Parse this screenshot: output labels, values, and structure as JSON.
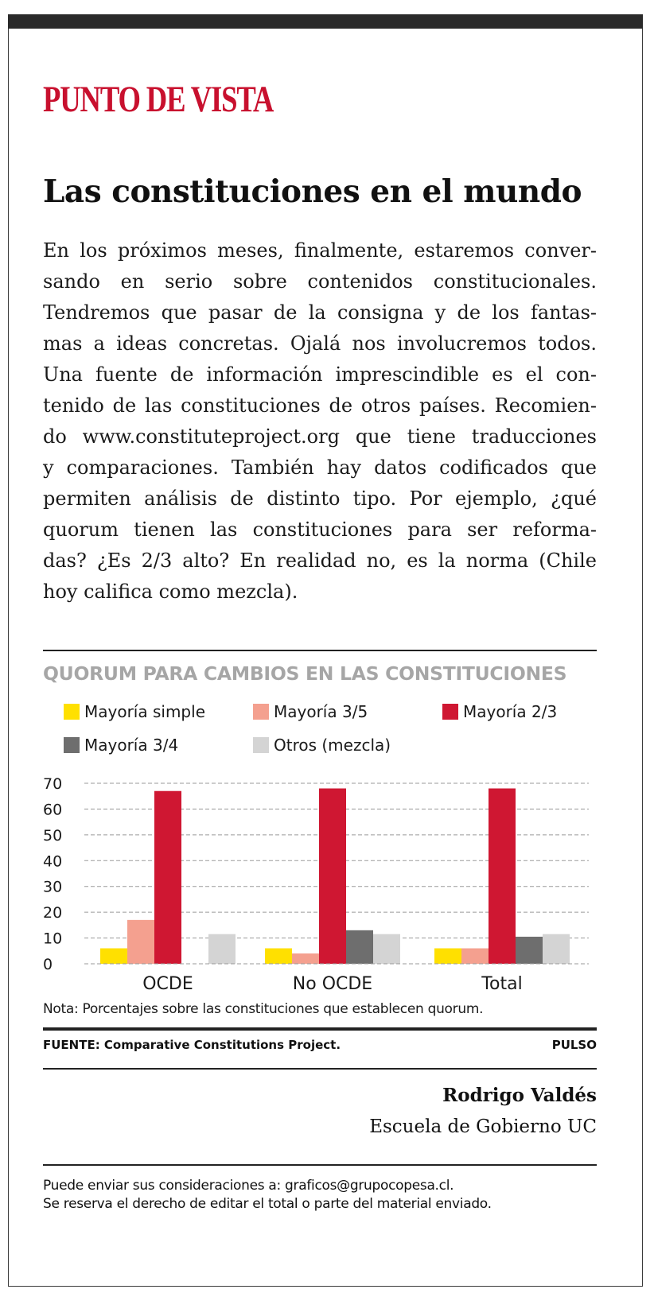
{
  "section": {
    "kicker": "PUNTO DE VISTA"
  },
  "article": {
    "headline": "Las constituciones en el mundo",
    "body_lines": [
      "En los próximos meses, finalmente, estaremos conver-",
      "sando en serio sobre contenidos constitucionales.",
      "Tendremos que pasar de la consigna y de los fantas-",
      "mas a ideas concretas. Ojalá nos involucremos todos.",
      "Una fuente de información imprescindible es el con-",
      "tenido de las constituciones de otros países. Recomien-",
      "do www.constituteproject.org que tiene traducciones",
      "y comparaciones. También hay datos codificados que",
      "permiten análisis de distinto tipo. Por ejemplo, ¿qué",
      "quorum tienen las constituciones para ser reforma-",
      "das? ¿Es 2/3 alto? En realidad no, es la norma (Chile",
      "hoy califica como mezcla)."
    ]
  },
  "chart_data": {
    "type": "bar",
    "title": "QUORUM PARA CAMBIOS EN LAS CONSTITUCIONES",
    "categories": [
      "OCDE",
      "No OCDE",
      "Total"
    ],
    "series": [
      {
        "name": "Mayoría simple",
        "color": "#ffe000",
        "values": [
          6,
          6,
          6
        ]
      },
      {
        "name": "Mayoría 3/5",
        "color": "#f4a08f",
        "values": [
          17,
          4,
          6
        ]
      },
      {
        "name": "Mayoría 2/3",
        "color": "#cf1732",
        "values": [
          67,
          68,
          68
        ]
      },
      {
        "name": "Mayoría 3/4",
        "color": "#6e6e6e",
        "values": [
          0,
          13,
          10.5
        ]
      },
      {
        "name": "Otros (mezcla)",
        "color": "#d4d4d4",
        "values": [
          11.5,
          11.5,
          11.5
        ]
      }
    ],
    "yticks": [
      "0",
      "10",
      "20",
      "30",
      "40",
      "50",
      "60",
      "70"
    ],
    "ylim": [
      0,
      70
    ],
    "xlabel": "",
    "ylabel": "",
    "grid": true,
    "legend": "top"
  },
  "chart_note": "Nota: Porcentajes sobre las constituciones que establecen quorum.",
  "credits": {
    "source": "FUENTE: Comparative Constitutions Project.",
    "brand": "PULSO"
  },
  "author": {
    "name": "Rodrigo Valdés",
    "affiliation": "Escuela de Gobierno UC"
  },
  "footer": {
    "line1": "Puede enviar sus consideraciones a: graficos@grupocopesa.cl.",
    "line2": "Se reserva el derecho de editar el total o parte del material enviado."
  }
}
